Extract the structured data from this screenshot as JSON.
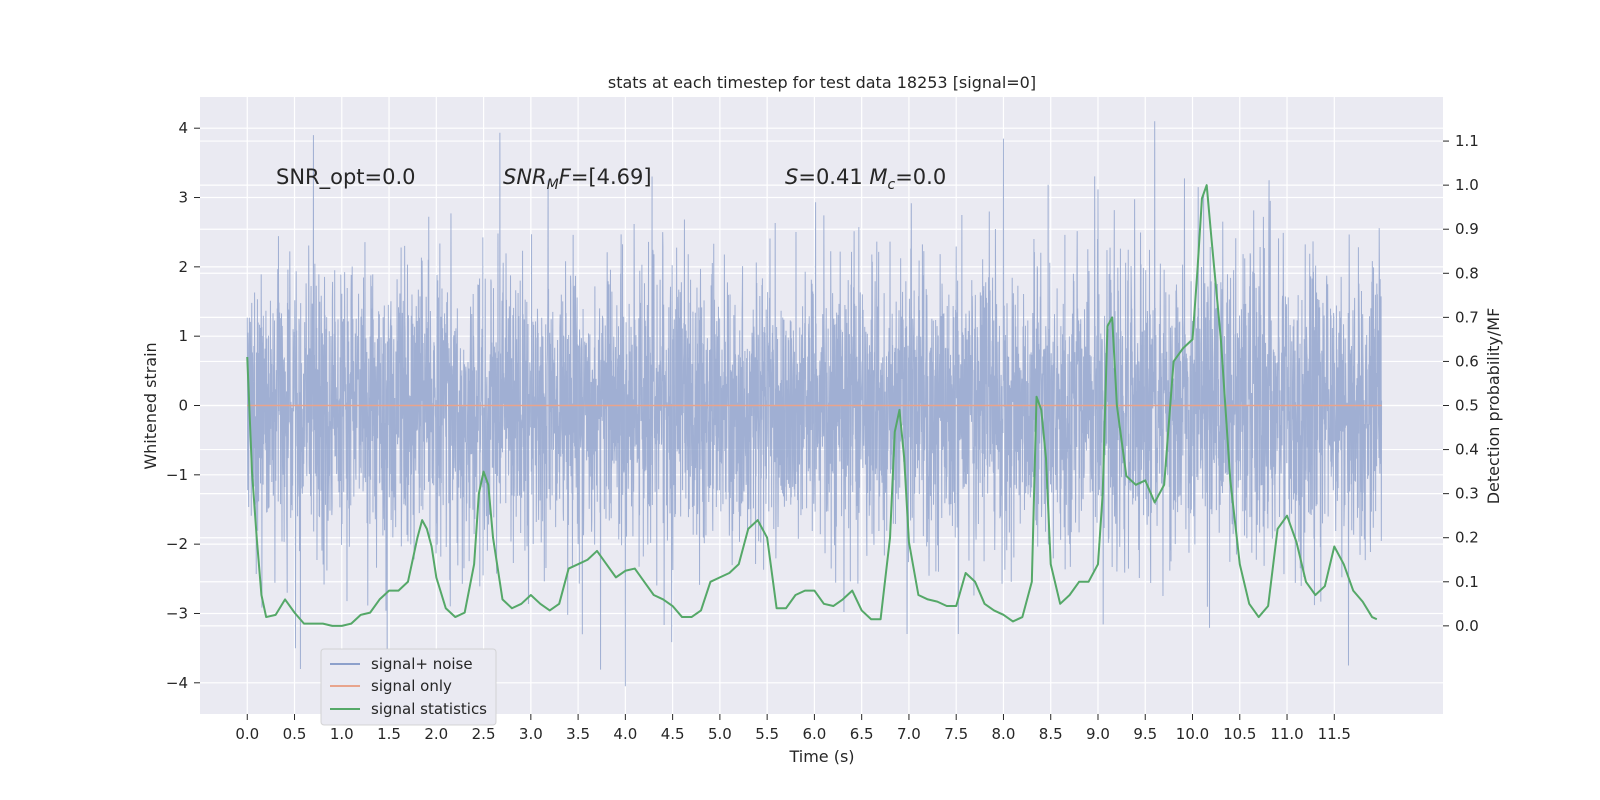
{
  "chart_data": {
    "type": "line",
    "title": "stats at each timestep for test data 18253 [signal=0]",
    "xlabel": "Time (s)",
    "ylabel_left": "Whitened strain",
    "ylabel_right": "Detection probability/MF",
    "xlim": [
      -0.5,
      12.65
    ],
    "ylim_left": [
      -4.45,
      4.45
    ],
    "ylim_right": [
      -0.2,
      1.2
    ],
    "x_ticks": [
      0.0,
      0.5,
      1.0,
      1.5,
      2.0,
      2.5,
      3.0,
      3.5,
      4.0,
      4.5,
      5.0,
      5.5,
      6.0,
      6.5,
      7.0,
      7.5,
      8.0,
      8.5,
      9.0,
      9.5,
      10.0,
      10.5,
      11.0,
      11.5
    ],
    "x_tick_labels": [
      "0.0",
      "0.5",
      "1.0",
      "1.5",
      "2.0",
      "2.5",
      "3.0",
      "3.5",
      "4.0",
      "4.5",
      "5.0",
      "5.5",
      "6.0",
      "6.5",
      "7.0",
      "7.5",
      "8.0",
      "8.5",
      "9.0",
      "9.5",
      "10.0",
      "10.5",
      "11.0",
      "11.5"
    ],
    "y_left_ticks": [
      -4,
      -3,
      -2,
      -1,
      0,
      1,
      2,
      3,
      4
    ],
    "y_left_tick_labels": [
      "−4",
      "−3",
      "−2",
      "−1",
      "0",
      "1",
      "2",
      "3",
      "4"
    ],
    "y_right_ticks": [
      0.0,
      0.1,
      0.2,
      0.3,
      0.4,
      0.5,
      0.6,
      0.7,
      0.8,
      0.9,
      1.0,
      1.1
    ],
    "y_right_tick_labels": [
      "0.0",
      "0.1",
      "0.2",
      "0.3",
      "0.4",
      "0.5",
      "0.6",
      "0.7",
      "0.8",
      "0.9",
      "1.0",
      "1.1"
    ],
    "grid": true,
    "legend_position": "lower-left",
    "annotations": [
      {
        "text": "SNR_opt=0.0",
        "x": 0.2,
        "y": 3.2
      },
      {
        "text": "SNR_MF=[4.69]",
        "x": 2.6,
        "y": 3.2
      },
      {
        "text": "S=0.41 M_c=0.0",
        "x": 5.6,
        "y": 3.2
      }
    ],
    "series": [
      {
        "name": "signal+ noise",
        "axis": "left",
        "color": "#8da0cb",
        "description_values": "whitened noise time series, t from 0.0 to 12.0 s",
        "t_range": [
          0.0,
          12.0
        ],
        "envelope_max_abs": 4.1,
        "peak_values": [
          {
            "x": 0.7,
            "y": 3.9
          },
          {
            "x": 4.0,
            "y": -4.05
          },
          {
            "x": 8.0,
            "y": 3.85
          },
          {
            "x": 9.6,
            "y": 4.1
          },
          {
            "x": 11.65,
            "y": -3.75
          }
        ]
      },
      {
        "name": "signal only",
        "axis": "left",
        "color": "#e8a48c",
        "x": [
          0.0,
          12.0
        ],
        "y": [
          0.0,
          0.0
        ]
      },
      {
        "name": "signal statistics",
        "axis": "right",
        "color": "#55a868",
        "x": [
          0.0,
          0.05,
          0.1,
          0.15,
          0.2,
          0.3,
          0.4,
          0.5,
          0.6,
          0.7,
          0.8,
          0.9,
          1.0,
          1.1,
          1.2,
          1.3,
          1.4,
          1.5,
          1.6,
          1.7,
          1.8,
          1.85,
          1.9,
          1.95,
          2.0,
          2.1,
          2.2,
          2.3,
          2.4,
          2.45,
          2.5,
          2.55,
          2.6,
          2.7,
          2.8,
          2.9,
          3.0,
          3.1,
          3.2,
          3.3,
          3.4,
          3.5,
          3.6,
          3.7,
          3.8,
          3.9,
          4.0,
          4.1,
          4.2,
          4.3,
          4.4,
          4.5,
          4.6,
          4.7,
          4.8,
          4.9,
          5.0,
          5.1,
          5.2,
          5.3,
          5.4,
          5.5,
          5.6,
          5.7,
          5.8,
          5.9,
          6.0,
          6.1,
          6.2,
          6.3,
          6.4,
          6.5,
          6.6,
          6.7,
          6.8,
          6.85,
          6.9,
          6.95,
          7.0,
          7.1,
          7.2,
          7.3,
          7.4,
          7.5,
          7.6,
          7.7,
          7.8,
          7.9,
          8.0,
          8.1,
          8.2,
          8.3,
          8.35,
          8.4,
          8.45,
          8.5,
          8.6,
          8.7,
          8.8,
          8.9,
          9.0,
          9.05,
          9.1,
          9.15,
          9.2,
          9.3,
          9.4,
          9.5,
          9.6,
          9.7,
          9.8,
          9.9,
          10.0,
          10.05,
          10.1,
          10.15,
          10.2,
          10.3,
          10.4,
          10.5,
          10.6,
          10.7,
          10.8,
          10.9,
          11.0,
          11.1,
          11.2,
          11.3,
          11.4,
          11.5,
          11.6,
          11.7,
          11.8,
          11.9,
          11.95
        ],
        "y": [
          0.61,
          0.35,
          0.2,
          0.07,
          0.02,
          0.025,
          0.06,
          0.03,
          0.005,
          0.005,
          0.005,
          0.0,
          0.0,
          0.005,
          0.025,
          0.03,
          0.06,
          0.08,
          0.08,
          0.1,
          0.2,
          0.24,
          0.22,
          0.18,
          0.11,
          0.04,
          0.02,
          0.03,
          0.14,
          0.3,
          0.35,
          0.32,
          0.2,
          0.06,
          0.04,
          0.05,
          0.07,
          0.05,
          0.035,
          0.05,
          0.13,
          0.14,
          0.15,
          0.17,
          0.14,
          0.11,
          0.125,
          0.13,
          0.1,
          0.07,
          0.06,
          0.045,
          0.02,
          0.02,
          0.035,
          0.1,
          0.11,
          0.12,
          0.14,
          0.22,
          0.24,
          0.2,
          0.04,
          0.04,
          0.07,
          0.08,
          0.08,
          0.05,
          0.045,
          0.06,
          0.08,
          0.035,
          0.015,
          0.015,
          0.2,
          0.44,
          0.49,
          0.38,
          0.19,
          0.07,
          0.06,
          0.055,
          0.045,
          0.045,
          0.12,
          0.1,
          0.05,
          0.035,
          0.025,
          0.01,
          0.02,
          0.1,
          0.52,
          0.49,
          0.38,
          0.14,
          0.05,
          0.07,
          0.1,
          0.1,
          0.14,
          0.3,
          0.68,
          0.7,
          0.5,
          0.34,
          0.32,
          0.33,
          0.28,
          0.32,
          0.6,
          0.63,
          0.65,
          0.8,
          0.97,
          1.0,
          0.88,
          0.65,
          0.33,
          0.14,
          0.05,
          0.02,
          0.045,
          0.22,
          0.25,
          0.19,
          0.1,
          0.07,
          0.09,
          0.18,
          0.14,
          0.08,
          0.055,
          0.02,
          0.015
        ]
      }
    ]
  }
}
